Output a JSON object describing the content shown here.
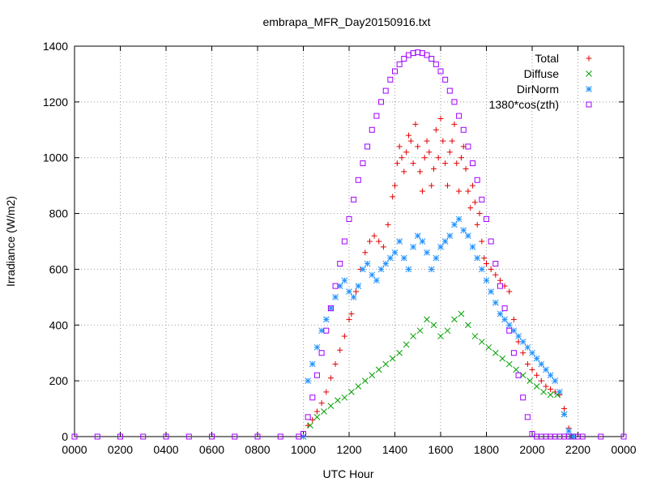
{
  "chart_data": {
    "type": "scatter",
    "title": "embrapa_MFR_Day20150916.txt",
    "xlabel": "UTC Hour",
    "ylabel": "Irradiance (W/m2)",
    "xlim": [
      0,
      24
    ],
    "ylim": [
      0,
      1400
    ],
    "xticks": [
      0,
      2,
      4,
      6,
      8,
      10,
      12,
      14,
      16,
      18,
      20,
      22,
      24
    ],
    "xtick_labels": [
      "0000",
      "0200",
      "0400",
      "0600",
      "0800",
      "1000",
      "1200",
      "1400",
      "1600",
      "1800",
      "2000",
      "2200",
      "0000"
    ],
    "yticks": [
      0,
      200,
      400,
      600,
      800,
      1000,
      1200,
      1400
    ],
    "ytick_labels": [
      "0",
      "200",
      "400",
      "600",
      "800",
      "1000",
      "1200",
      "1400"
    ],
    "grid": true,
    "legend_position": "top-right",
    "series": [
      {
        "name": "Total",
        "marker": "+",
        "color": "#e00000",
        "x": [
          10.0,
          10.2,
          10.4,
          10.6,
          10.8,
          11.0,
          11.2,
          11.4,
          11.6,
          11.8,
          12.0,
          12.1,
          12.3,
          12.5,
          12.7,
          12.9,
          13.1,
          13.3,
          13.5,
          13.7,
          13.9,
          14.0,
          14.1,
          14.2,
          14.3,
          14.4,
          14.5,
          14.6,
          14.7,
          14.8,
          14.9,
          15.0,
          15.1,
          15.2,
          15.3,
          15.4,
          15.5,
          15.6,
          15.7,
          15.8,
          15.9,
          16.0,
          16.1,
          16.2,
          16.3,
          16.4,
          16.5,
          16.6,
          16.7,
          16.8,
          16.9,
          17.0,
          17.1,
          17.2,
          17.3,
          17.4,
          17.5,
          17.6,
          17.7,
          17.8,
          17.9,
          18.0,
          18.2,
          18.4,
          18.6,
          18.8,
          19.0,
          19.2,
          19.4,
          19.6,
          19.8,
          20.0,
          20.2,
          20.4,
          20.6,
          20.8,
          21.0,
          21.2,
          21.4,
          21.6,
          21.8
        ],
        "y": [
          0,
          40,
          60,
          90,
          120,
          160,
          210,
          260,
          310,
          360,
          420,
          440,
          520,
          600,
          660,
          700,
          720,
          700,
          680,
          760,
          860,
          900,
          980,
          1040,
          1000,
          950,
          1020,
          1080,
          1060,
          980,
          1120,
          1040,
          950,
          880,
          1000,
          1060,
          1020,
          900,
          960,
          1100,
          1000,
          1140,
          1060,
          980,
          900,
          1020,
          1060,
          1120,
          980,
          880,
          1000,
          1040,
          960,
          880,
          820,
          900,
          840,
          760,
          800,
          700,
          640,
          620,
          600,
          580,
          560,
          540,
          520,
          420,
          340,
          300,
          260,
          240,
          220,
          200,
          180,
          170,
          160,
          150,
          100,
          30,
          0
        ]
      },
      {
        "name": "Diffuse",
        "marker": "x",
        "color": "#00a000",
        "x": [
          10.0,
          10.3,
          10.6,
          10.9,
          11.2,
          11.5,
          11.8,
          12.1,
          12.4,
          12.7,
          13.0,
          13.3,
          13.6,
          13.9,
          14.2,
          14.5,
          14.8,
          15.1,
          15.4,
          15.7,
          16.0,
          16.3,
          16.6,
          16.9,
          17.2,
          17.5,
          17.8,
          18.1,
          18.4,
          18.7,
          19.0,
          19.3,
          19.6,
          19.9,
          20.2,
          20.5,
          20.8,
          21.1,
          21.4,
          21.7
        ],
        "y": [
          0,
          40,
          70,
          90,
          110,
          130,
          140,
          160,
          180,
          200,
          220,
          240,
          260,
          280,
          300,
          330,
          360,
          380,
          420,
          400,
          360,
          380,
          420,
          440,
          400,
          360,
          340,
          320,
          300,
          280,
          260,
          240,
          220,
          200,
          180,
          160,
          150,
          150,
          80,
          0
        ]
      },
      {
        "name": "DirNorm",
        "marker": "*",
        "color": "#1e90ff",
        "x": [
          10.0,
          10.2,
          10.4,
          10.6,
          10.8,
          11.0,
          11.2,
          11.4,
          11.6,
          11.8,
          12.0,
          12.2,
          12.4,
          12.6,
          12.8,
          13.0,
          13.2,
          13.4,
          13.6,
          13.8,
          14.0,
          14.2,
          14.4,
          14.6,
          14.8,
          15.0,
          15.2,
          15.4,
          15.6,
          15.8,
          16.0,
          16.2,
          16.4,
          16.6,
          16.8,
          17.0,
          17.2,
          17.4,
          17.6,
          17.8,
          18.0,
          18.2,
          18.4,
          18.6,
          18.8,
          19.0,
          19.2,
          19.4,
          19.6,
          19.8,
          20.0,
          20.2,
          20.4,
          20.6,
          20.8,
          21.0,
          21.2,
          21.4,
          21.6,
          21.8
        ],
        "y": [
          0,
          200,
          260,
          320,
          380,
          420,
          460,
          500,
          540,
          560,
          520,
          500,
          540,
          600,
          620,
          580,
          560,
          600,
          620,
          640,
          660,
          700,
          640,
          600,
          680,
          720,
          700,
          660,
          600,
          640,
          680,
          700,
          720,
          760,
          780,
          740,
          720,
          680,
          640,
          600,
          560,
          520,
          480,
          440,
          420,
          400,
          380,
          360,
          340,
          320,
          300,
          280,
          260,
          240,
          220,
          200,
          160,
          80,
          20,
          0
        ]
      },
      {
        "name": "1380*cos(zth)",
        "marker": "square",
        "color": "#a000ff",
        "x": [
          0,
          1,
          2,
          3,
          4,
          5,
          6,
          7,
          8,
          9,
          9.8,
          10.0,
          10.2,
          10.4,
          10.6,
          10.8,
          11.0,
          11.2,
          11.4,
          11.6,
          11.8,
          12.0,
          12.2,
          12.4,
          12.6,
          12.8,
          13.0,
          13.2,
          13.4,
          13.6,
          13.8,
          14.0,
          14.2,
          14.4,
          14.6,
          14.8,
          15.0,
          15.2,
          15.4,
          15.6,
          15.8,
          16.0,
          16.2,
          16.4,
          16.6,
          16.8,
          17.0,
          17.2,
          17.4,
          17.6,
          17.8,
          18.0,
          18.2,
          18.4,
          18.6,
          18.8,
          19.0,
          19.2,
          19.4,
          19.6,
          19.8,
          20.0,
          20.2,
          20.4,
          20.6,
          20.8,
          21.0,
          21.2,
          21.4,
          21.6,
          21.8,
          22.0,
          22.2,
          23,
          24
        ],
        "y": [
          0,
          0,
          0,
          0,
          0,
          0,
          0,
          0,
          0,
          0,
          0,
          10,
          70,
          140,
          220,
          300,
          380,
          460,
          540,
          620,
          700,
          780,
          850,
          920,
          980,
          1040,
          1100,
          1150,
          1200,
          1240,
          1280,
          1310,
          1335,
          1355,
          1368,
          1375,
          1378,
          1375,
          1368,
          1355,
          1335,
          1310,
          1280,
          1240,
          1200,
          1150,
          1100,
          1040,
          980,
          920,
          850,
          780,
          700,
          620,
          540,
          460,
          380,
          300,
          220,
          140,
          70,
          10,
          0,
          0,
          0,
          0,
          0,
          0,
          0,
          0,
          0,
          0,
          0,
          0,
          0
        ]
      }
    ]
  }
}
